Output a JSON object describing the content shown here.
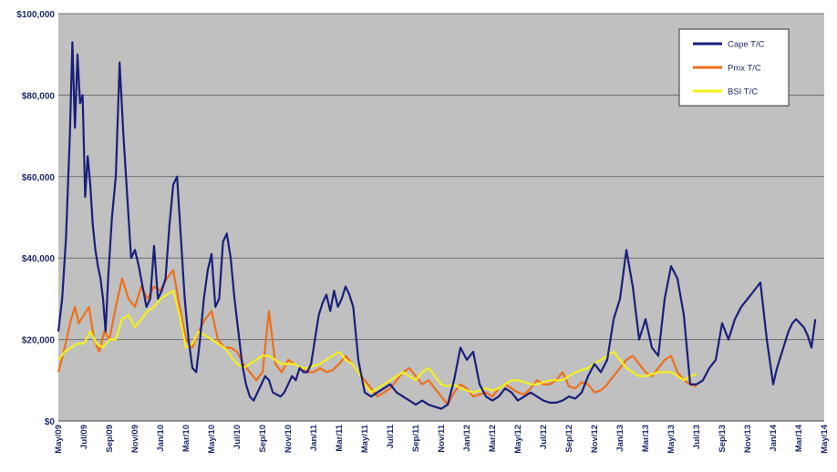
{
  "chart_data": {
    "type": "line",
    "title": "",
    "xlabel": "",
    "ylabel": "",
    "ylim": [
      0,
      100000
    ],
    "yticks": [
      0,
      20000,
      40000,
      60000,
      80000,
      100000
    ],
    "ytick_labels": [
      "$0",
      "$20,000",
      "$40,000",
      "$60,000",
      "$80,000",
      "$100,000"
    ],
    "xlim": [
      0,
      60
    ],
    "xticks": [
      0,
      2,
      4,
      6,
      8,
      10,
      12,
      14,
      16,
      18,
      20,
      22,
      24,
      26,
      28,
      30,
      32,
      34,
      36,
      38,
      40,
      42,
      44,
      46,
      48,
      50,
      52,
      54,
      56,
      58,
      60
    ],
    "xtick_labels": [
      "May/09",
      "Jul/09",
      "Sep/09",
      "Nov/09",
      "Jan/10",
      "Mar/10",
      "May/10",
      "Jul/10",
      "Sep/10",
      "Nov/10",
      "Jan/11",
      "Mar/11",
      "May/11",
      "Jul/11",
      "Sep/11",
      "Nov/11",
      "Jan/12",
      "Mar/12",
      "May/12",
      "Jul/12",
      "Sep/12",
      "Nov/12",
      "Jan/13",
      "Mar/13",
      "May/13",
      "Jul/13",
      "Sep/13",
      "Nov/13",
      "Jan/14",
      "Mar/14",
      "May/14"
    ],
    "grid": true,
    "legend_position": "top-right",
    "colors": {
      "plot_bg": "#c0c0c0",
      "grid": "#6e6e6e",
      "axis_text": "#1f2a6b"
    },
    "series": [
      {
        "name": "Cape T/C",
        "color": "#1a1f7a",
        "x": [
          0,
          0.3,
          0.6,
          0.9,
          1.1,
          1.3,
          1.5,
          1.7,
          1.9,
          2.1,
          2.3,
          2.5,
          2.7,
          2.9,
          3.1,
          3.3,
          3.5,
          3.7,
          3.9,
          4.2,
          4.5,
          4.8,
          5.1,
          5.4,
          5.7,
          6.0,
          6.3,
          6.6,
          6.9,
          7.2,
          7.5,
          7.8,
          8.1,
          8.4,
          8.7,
          9.0,
          9.3,
          9.6,
          9.9,
          10.2,
          10.5,
          10.8,
          11.1,
          11.4,
          11.7,
          12.0,
          12.3,
          12.6,
          12.9,
          13.2,
          13.5,
          13.8,
          14.1,
          14.4,
          14.7,
          15.0,
          15.3,
          15.6,
          15.9,
          16.2,
          16.5,
          16.8,
          17.1,
          17.4,
          17.7,
          18.0,
          18.3,
          18.6,
          18.9,
          19.2,
          19.5,
          19.8,
          20.1,
          20.4,
          20.7,
          21.0,
          21.3,
          21.6,
          21.9,
          22.2,
          22.5,
          22.8,
          23.1,
          23.5,
          24.0,
          24.5,
          25.0,
          25.5,
          26.0,
          26.5,
          27.0,
          27.5,
          28.0,
          28.5,
          29.0,
          29.5,
          30.0,
          30.5,
          31.0,
          31.5,
          32.0,
          32.5,
          33.0,
          33.5,
          34.0,
          34.5,
          35.0,
          35.5,
          36.0,
          36.5,
          37.0,
          37.5,
          38.0,
          38.5,
          39.0,
          39.5,
          40.0,
          40.5,
          41.0,
          41.5,
          42.0,
          42.5,
          43.0,
          43.5,
          44.0,
          44.5,
          45.0,
          45.5,
          46.0,
          46.5,
          47.0,
          47.5,
          48.0,
          48.5,
          49.0,
          49.5,
          50.0,
          50.5,
          51.0,
          51.5,
          52.0,
          52.5,
          53.0,
          53.5,
          54.0,
          54.5,
          55.0,
          55.5,
          56.0,
          56.3,
          56.6,
          56.9,
          57.2,
          57.5,
          57.8,
          58.1,
          58.4,
          58.7,
          59.0,
          59.3
        ],
        "values": [
          22000,
          30000,
          45000,
          70000,
          93000,
          72000,
          90000,
          78000,
          80000,
          55000,
          65000,
          58000,
          48000,
          42000,
          38000,
          35000,
          30000,
          22000,
          35000,
          50000,
          60000,
          88000,
          70000,
          55000,
          40000,
          42000,
          38000,
          33000,
          28000,
          30000,
          43000,
          30000,
          32000,
          35000,
          48000,
          58000,
          60000,
          45000,
          30000,
          20000,
          13000,
          12000,
          20000,
          30000,
          37000,
          41000,
          28000,
          30000,
          44000,
          46000,
          40000,
          30000,
          22000,
          14000,
          9000,
          6000,
          5000,
          7000,
          9000,
          11000,
          10000,
          7000,
          6500,
          6000,
          7000,
          9000,
          11000,
          10000,
          13000,
          12000,
          12000,
          14000,
          20000,
          26000,
          29000,
          31000,
          27000,
          32000,
          28000,
          30000,
          33000,
          31000,
          28000,
          15000,
          7000,
          6000,
          7000,
          8000,
          9000,
          7000,
          6000,
          5000,
          4000,
          5000,
          4000,
          3500,
          3000,
          4000,
          10000,
          18000,
          15000,
          17000,
          9000,
          6000,
          5000,
          6000,
          8000,
          7000,
          5000,
          6000,
          7000,
          6000,
          5000,
          4500,
          4500,
          5000,
          6000,
          5500,
          7000,
          11000,
          14000,
          12000,
          15000,
          25000,
          30000,
          42000,
          33000,
          20000,
          25000,
          18000,
          16000,
          30000,
          38000,
          35000,
          26000,
          9000,
          9000,
          10000,
          13000,
          15000,
          24000,
          20000,
          25000,
          28000,
          30000,
          32000,
          34000,
          20000,
          9000,
          13000,
          16000,
          19000,
          22000,
          24000,
          25000,
          24000,
          23000,
          21000,
          18000,
          25000
        ],
        "values_note": "estimated from axis"
      },
      {
        "name": "Pmx T/C",
        "color": "#ef6f1a",
        "x": [
          0,
          0.5,
          1.0,
          1.3,
          1.6,
          2.0,
          2.4,
          2.8,
          3.2,
          3.6,
          4.0,
          4.5,
          5.0,
          5.5,
          6.0,
          6.5,
          7.0,
          7.5,
          8.0,
          8.5,
          9.0,
          9.5,
          10.0,
          10.5,
          11.0,
          11.5,
          12.0,
          12.5,
          13.0,
          13.5,
          14.0,
          14.5,
          15.0,
          15.5,
          16.0,
          16.5,
          17.0,
          17.5,
          18.0,
          18.5,
          19.0,
          19.5,
          20.0,
          20.5,
          21.0,
          21.5,
          22.0,
          22.5,
          23.0,
          23.5,
          24.0,
          24.5,
          25.0,
          25.5,
          26.0,
          26.5,
          27.0,
          27.5,
          28.0,
          28.5,
          29.0,
          29.5,
          30.0,
          30.5,
          31.0,
          31.5,
          32.0,
          32.5,
          33.0,
          33.5,
          34.0,
          34.5,
          35.0,
          35.5,
          36.0,
          36.5,
          37.0,
          37.5,
          38.0,
          38.5,
          39.0,
          39.5,
          40.0,
          40.5,
          41.0,
          41.5,
          42.0,
          42.5,
          43.0,
          43.5,
          44.0,
          44.5,
          45.0,
          45.5,
          46.0,
          46.5,
          47.0,
          47.5,
          48.0,
          48.5,
          49.0,
          49.5,
          50.0
        ],
        "values": [
          12000,
          18000,
          25000,
          28000,
          24000,
          26000,
          28000,
          20000,
          17000,
          22000,
          20000,
          28000,
          35000,
          30000,
          28000,
          33000,
          30000,
          33000,
          32000,
          35000,
          37000,
          28000,
          20000,
          18000,
          22000,
          25000,
          27000,
          20000,
          18000,
          18000,
          17000,
          14000,
          12000,
          10000,
          12000,
          27000,
          14000,
          12000,
          15000,
          14000,
          13000,
          12000,
          12000,
          13000,
          12000,
          12500,
          14000,
          16000,
          14000,
          12000,
          10000,
          8000,
          6000,
          7000,
          8000,
          10000,
          12000,
          13000,
          11000,
          9000,
          10000,
          8000,
          6000,
          4000,
          7000,
          9000,
          8000,
          6000,
          6500,
          7000,
          6000,
          8000,
          9000,
          8000,
          7000,
          6500,
          8000,
          10000,
          9000,
          9000,
          10000,
          12000,
          8500,
          8000,
          9500,
          9000,
          7000,
          7500,
          9000,
          11000,
          13000,
          15000,
          16000,
          14000,
          12000,
          11000,
          13000,
          15000,
          16000,
          12000,
          10000,
          9000,
          8500
        ],
        "values_note": "estimated from axis"
      },
      {
        "name": "BSI T/C",
        "color": "#f4f01a",
        "x": [
          0,
          0.5,
          1.0,
          1.5,
          2.0,
          2.5,
          3.0,
          3.5,
          4.0,
          4.5,
          5.0,
          5.5,
          6.0,
          6.5,
          7.0,
          7.5,
          8.0,
          8.5,
          9.0,
          9.5,
          10.0,
          10.5,
          11.0,
          11.5,
          12.0,
          12.5,
          13.0,
          13.5,
          14.0,
          14.5,
          15.0,
          15.5,
          16.0,
          16.5,
          17.0,
          17.5,
          18.0,
          18.5,
          19.0,
          19.5,
          20.0,
          20.5,
          21.0,
          21.5,
          22.0,
          22.5,
          23.0,
          23.5,
          24.0,
          24.5,
          25.0,
          25.5,
          26.0,
          26.5,
          27.0,
          27.5,
          28.0,
          28.5,
          29.0,
          29.5,
          30.0,
          30.5,
          31.0,
          31.5,
          32.0,
          32.5,
          33.0,
          33.5,
          34.0,
          34.5,
          35.0,
          35.5,
          36.0,
          36.5,
          37.0,
          37.5,
          38.0,
          38.5,
          39.0,
          39.5,
          40.0,
          40.5,
          41.0,
          41.5,
          42.0,
          42.5,
          43.0,
          43.5,
          44.0,
          44.5,
          45.0,
          45.5,
          46.0,
          46.5,
          47.0,
          47.5,
          48.0,
          48.5,
          49.0,
          49.5,
          50.0
        ],
        "values": [
          15000,
          17000,
          18000,
          19000,
          19000,
          22000,
          19000,
          18000,
          20000,
          20000,
          25000,
          26000,
          23000,
          25000,
          27000,
          28000,
          30000,
          31000,
          32000,
          26000,
          18000,
          19000,
          22000,
          21000,
          20000,
          19000,
          18000,
          16000,
          14000,
          13000,
          14000,
          15000,
          16000,
          16000,
          15000,
          14000,
          14000,
          14000,
          13000,
          13000,
          13500,
          14000,
          15000,
          16000,
          17000,
          15000,
          14000,
          12000,
          9000,
          7000,
          8000,
          9000,
          10000,
          11000,
          12000,
          11000,
          10000,
          12000,
          13000,
          11000,
          9000,
          8500,
          9000,
          8000,
          7500,
          7000,
          7500,
          8000,
          7500,
          8000,
          9000,
          10000,
          10000,
          9500,
          9000,
          9000,
          9500,
          10000,
          10000,
          10000,
          11000,
          12000,
          12500,
          13000,
          14000,
          15000,
          16000,
          17000,
          15000,
          13000,
          12000,
          11000,
          11000,
          11500,
          12000,
          12000,
          12000,
          11000,
          10000,
          11000,
          11500
        ],
        "values_note": "estimated from axis"
      }
    ]
  }
}
